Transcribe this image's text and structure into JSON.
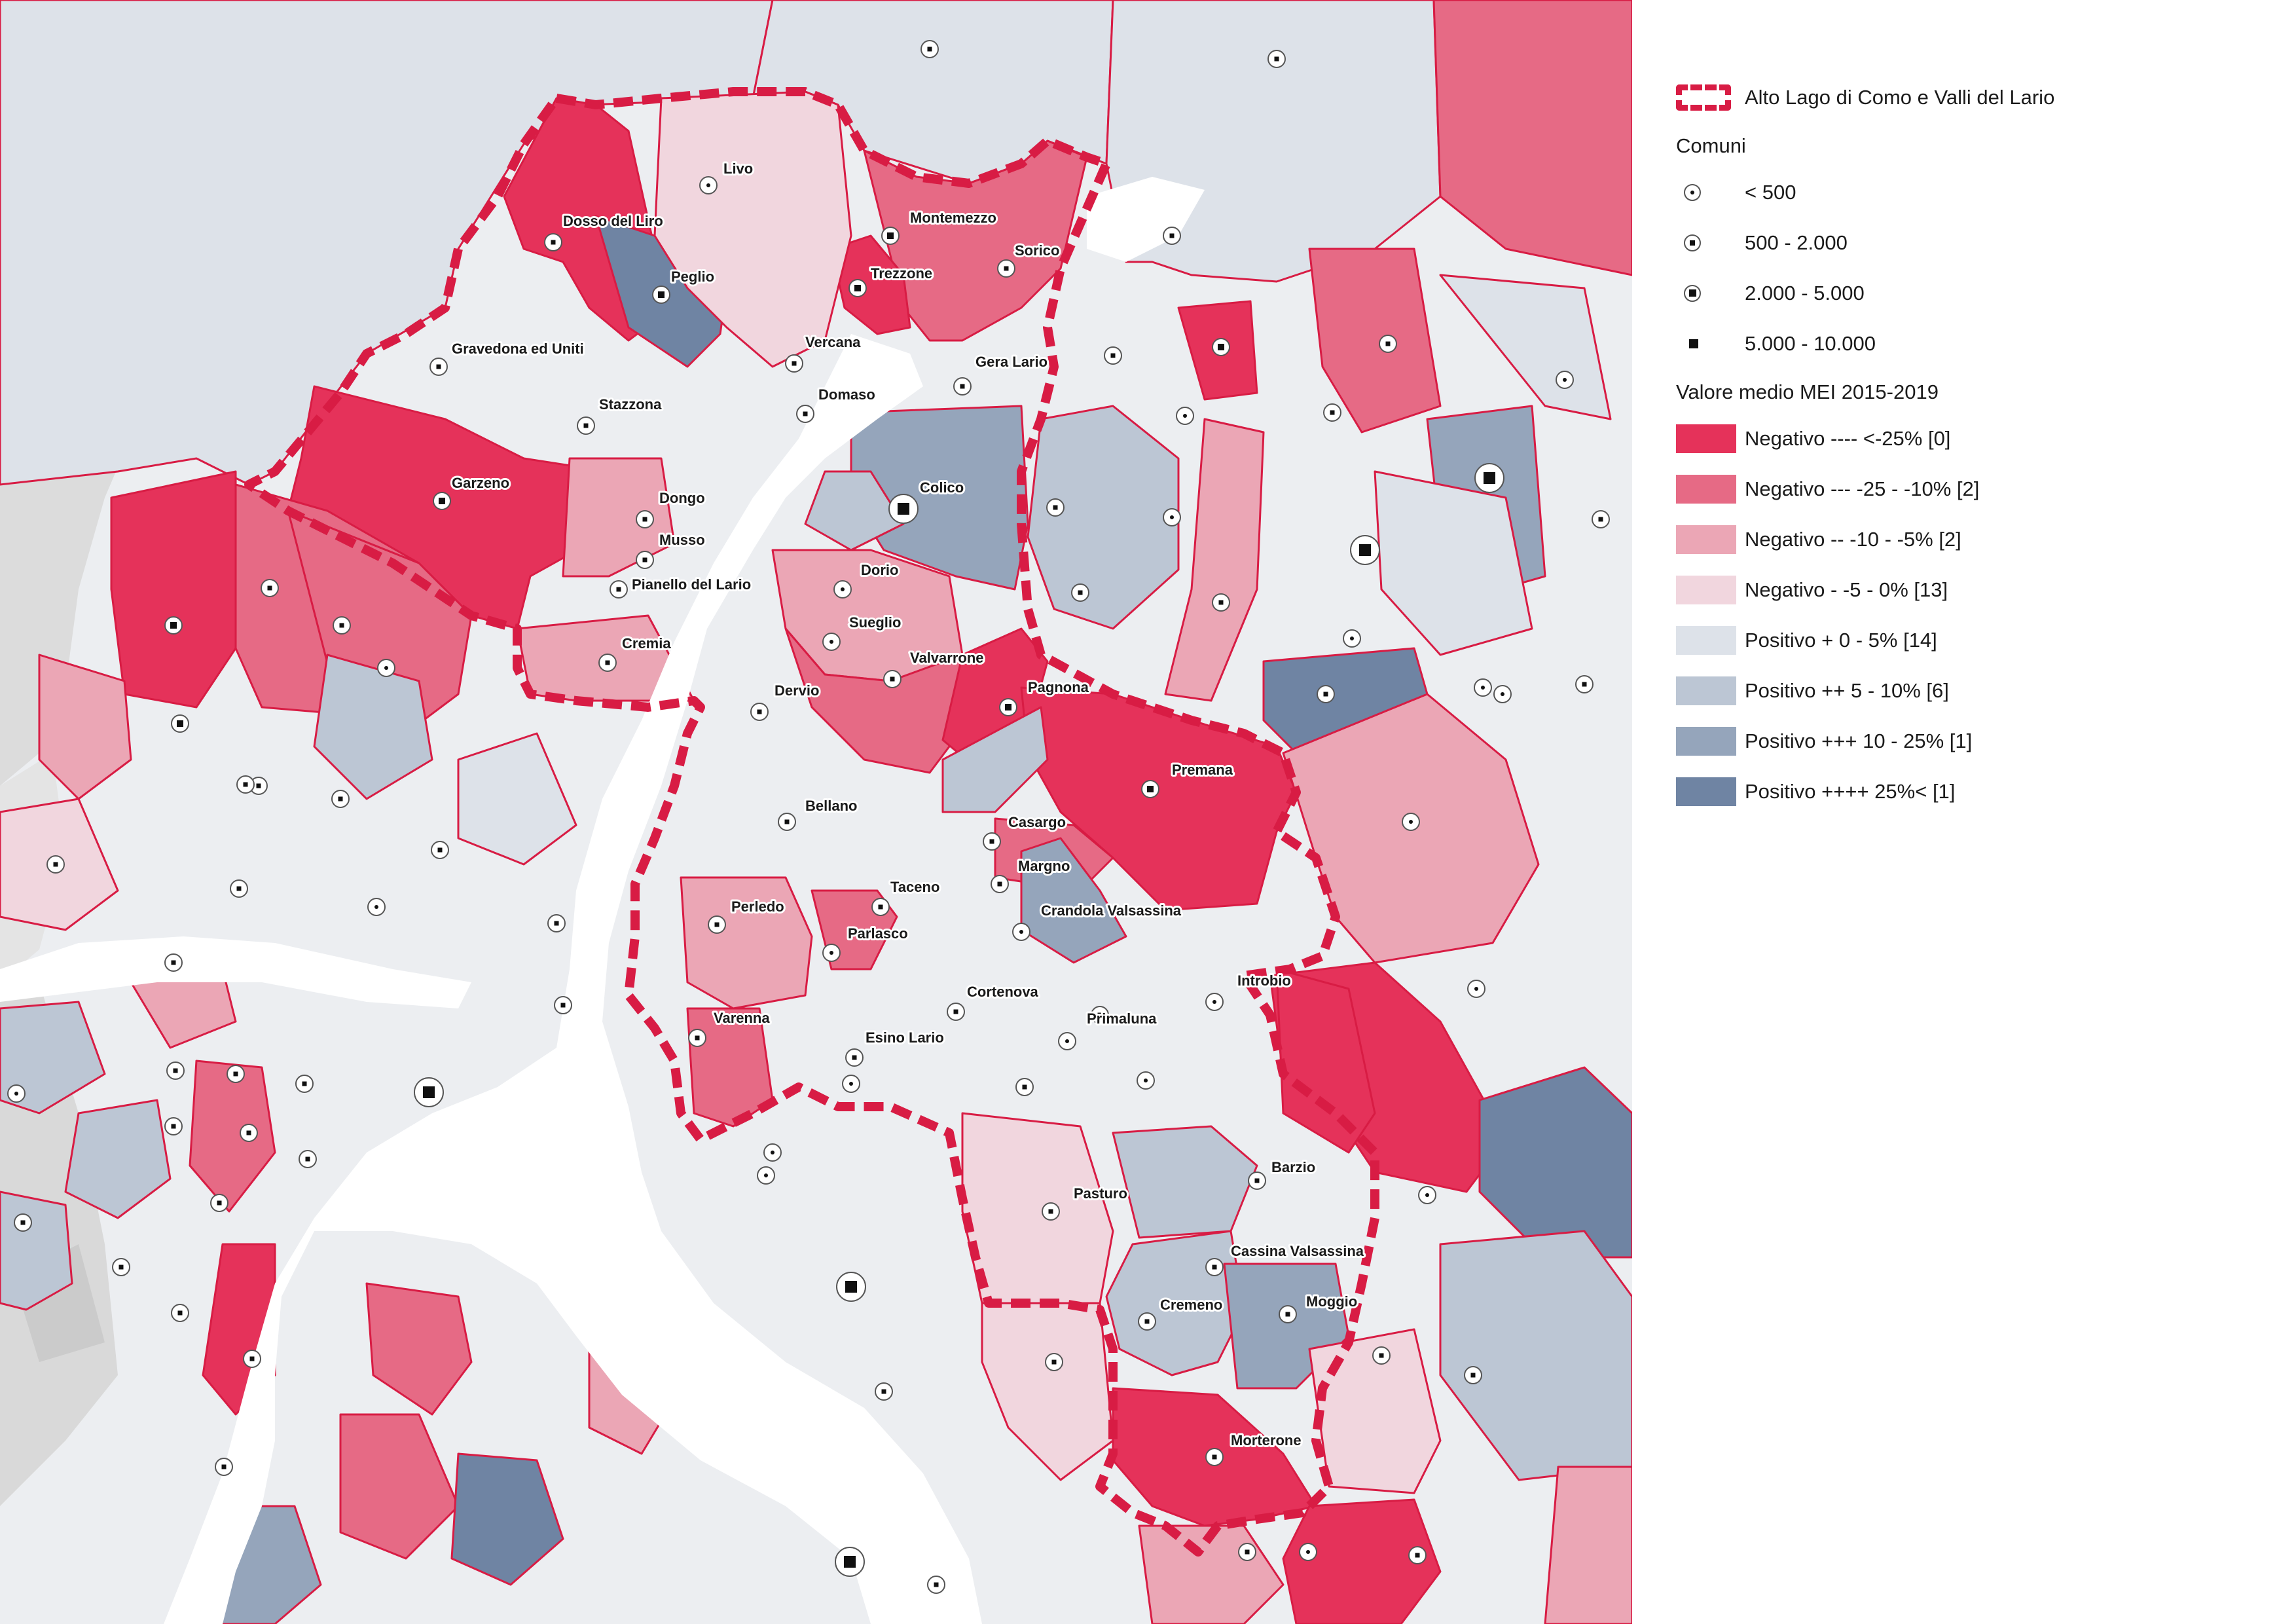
{
  "colors": {
    "neg4": "#e5325a",
    "neg3": "#e66a85",
    "neg2": "#eba6b5",
    "neg1": "#f1d6de",
    "pos1": "#dde2e9",
    "pos2": "#bcc6d4",
    "pos3": "#95a5bb",
    "pos4": "#6f84a3",
    "border": "#d81c44",
    "water": "#ffffff",
    "terrain": "#dedede"
  },
  "legend": {
    "boundary_label": "Alto Lago di Como e Valli del Lario",
    "comuni_title": "Comuni",
    "comuni": [
      {
        "label": "< 500",
        "icon": "dot-icon"
      },
      {
        "label": "500 - 2.000",
        "icon": "small-square-icon"
      },
      {
        "label": "2.000 - 5.000",
        "icon": "medium-square-icon"
      },
      {
        "label": "5.000 - 10.000",
        "icon": "large-square-icon"
      }
    ],
    "mei_title": "Valore medio MEI 2015-2019",
    "classes": [
      {
        "label": "Negativo ---- <-25% [0]",
        "color": "#e5325a"
      },
      {
        "label": "Negativo --- -25 - -10% [2]",
        "color": "#e66a85"
      },
      {
        "label": "Negativo -- -10 - -5% [2]",
        "color": "#eba6b5"
      },
      {
        "label": "Negativo -  -5 - 0% [13]",
        "color": "#f1d6de"
      },
      {
        "label": "Positivo + 0 - 5% [14]",
        "color": "#dde2e9"
      },
      {
        "label": "Positivo ++ 5 - 10% [6]",
        "color": "#bcc6d4"
      },
      {
        "label": "Positivo +++ 10 - 25% [1]",
        "color": "#95a5bb"
      },
      {
        "label": "Positivo ++++ 25%< [1]",
        "color": "#6f84a3"
      }
    ]
  },
  "places": [
    "Livo",
    "Dosso del Liro",
    "Peglio",
    "Montemezzo",
    "Sorico",
    "Trezzone",
    "Gravedona ed Uniti",
    "Vercana",
    "Gera Lario",
    "Domaso",
    "Stazzona",
    "Garzeno",
    "Colico",
    "Dongo",
    "Musso",
    "Pianello del Lario",
    "Dorio",
    "Sueglio",
    "Cremia",
    "Valvarrone",
    "Dervio",
    "Pagnona",
    "Premana",
    "Bellano",
    "Casargo",
    "Margno",
    "Taceno",
    "Perledo",
    "Crandola Valsassina",
    "Parlasco",
    "Introbio",
    "Cortenova",
    "Varenna",
    "Primaluna",
    "Esino Lario",
    "Barzio",
    "Pasturo",
    "Cassina Valsassina",
    "Cremeno",
    "Moggio",
    "Morterone"
  ]
}
